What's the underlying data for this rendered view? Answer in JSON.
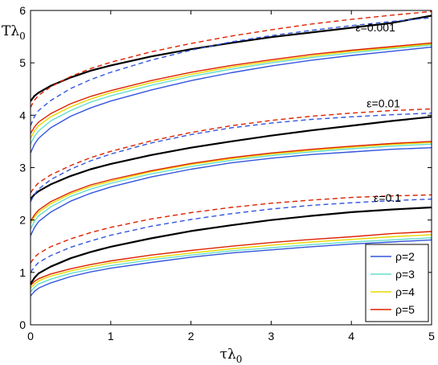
{
  "chart_data": {
    "type": "line",
    "xlabel": "τλ",
    "xlabel_sub": "0",
    "ylabel": "Tλ",
    "ylabel_sub": "0",
    "xlim": [
      0,
      5
    ],
    "ylim": [
      0,
      6
    ],
    "xticks": [
      "0",
      "1",
      "2",
      "3",
      "4",
      "5"
    ],
    "yticks": [
      "0",
      "1",
      "2",
      "3",
      "4",
      "5",
      "6"
    ],
    "grid": false,
    "legend_position": "bottom-right",
    "legend": [
      {
        "label": "ρ=2",
        "color": "#3355dd"
      },
      {
        "label": "ρ=3",
        "color": "#66ddcc"
      },
      {
        "label": "ρ=4",
        "color": "#e8d800"
      },
      {
        "label": "ρ=5",
        "color": "#dd2200"
      }
    ],
    "annotations": [
      {
        "text": "ε=0.001",
        "x": 4.3,
        "y": 5.6
      },
      {
        "text": "ε=0.01",
        "x": 4.4,
        "y": 4.15
      },
      {
        "text": "ε=0.1",
        "x": 4.45,
        "y": 2.35
      }
    ],
    "x": [
      0,
      0.05,
      0.1,
      0.25,
      0.5,
      0.75,
      1,
      1.5,
      2,
      2.5,
      3,
      3.5,
      4,
      4.5,
      5
    ],
    "series": [
      {
        "group": "ε=0.001",
        "style": "solid",
        "color": "#3355dd",
        "values": [
          3.28,
          3.45,
          3.56,
          3.76,
          3.98,
          4.14,
          4.27,
          4.48,
          4.66,
          4.81,
          4.94,
          5.05,
          5.14,
          5.22,
          5.3
        ]
      },
      {
        "group": "ε=0.001",
        "style": "solid",
        "color": "#66ddcc",
        "values": [
          3.45,
          3.6,
          3.7,
          3.89,
          4.09,
          4.25,
          4.37,
          4.57,
          4.74,
          4.88,
          5.0,
          5.1,
          5.19,
          5.27,
          5.34
        ]
      },
      {
        "group": "ε=0.001",
        "style": "solid",
        "color": "#e8d800",
        "values": [
          3.56,
          3.7,
          3.8,
          3.97,
          4.16,
          4.31,
          4.43,
          4.62,
          4.78,
          4.92,
          5.03,
          5.13,
          5.22,
          5.29,
          5.36
        ]
      },
      {
        "group": "ε=0.001",
        "style": "solid",
        "color": "#dd2200",
        "values": [
          3.65,
          3.78,
          3.87,
          4.03,
          4.22,
          4.36,
          4.47,
          4.66,
          4.82,
          4.95,
          5.06,
          5.16,
          5.24,
          5.31,
          5.38
        ]
      },
      {
        "group": "ε=0.001",
        "style": "solid",
        "color": "#000000",
        "values": [
          4.27,
          4.37,
          4.43,
          4.56,
          4.72,
          4.85,
          4.95,
          5.12,
          5.26,
          5.38,
          5.49,
          5.58,
          5.67,
          5.76,
          5.9
        ]
      },
      {
        "group": "ε=0.001",
        "style": "dashed",
        "color": "#3355dd",
        "values": [
          3.8,
          3.98,
          4.09,
          4.28,
          4.51,
          4.68,
          4.82,
          5.05,
          5.24,
          5.4,
          5.52,
          5.62,
          5.71,
          5.79,
          5.86
        ]
      },
      {
        "group": "ε=0.001",
        "style": "dashed",
        "color": "#dd2200",
        "values": [
          4.15,
          4.29,
          4.38,
          4.54,
          4.74,
          4.89,
          5.01,
          5.21,
          5.37,
          5.51,
          5.63,
          5.74,
          5.83,
          5.91,
          5.98
        ]
      },
      {
        "group": "ε=0.01",
        "style": "solid",
        "color": "#3355dd",
        "values": [
          1.7,
          1.86,
          1.97,
          2.15,
          2.36,
          2.51,
          2.63,
          2.82,
          2.97,
          3.09,
          3.18,
          3.25,
          3.3,
          3.35,
          3.38
        ]
      },
      {
        "group": "ε=0.01",
        "style": "solid",
        "color": "#66ddcc",
        "values": [
          1.83,
          1.98,
          2.08,
          2.25,
          2.45,
          2.59,
          2.7,
          2.88,
          3.02,
          3.14,
          3.23,
          3.3,
          3.36,
          3.41,
          3.45
        ]
      },
      {
        "group": "ε=0.01",
        "style": "solid",
        "color": "#e8d800",
        "values": [
          1.93,
          2.06,
          2.15,
          2.31,
          2.5,
          2.64,
          2.74,
          2.92,
          3.06,
          3.17,
          3.26,
          3.33,
          3.39,
          3.44,
          3.48
        ]
      },
      {
        "group": "ε=0.01",
        "style": "solid",
        "color": "#dd2200",
        "values": [
          1.98,
          2.1,
          2.19,
          2.35,
          2.53,
          2.67,
          2.77,
          2.94,
          3.08,
          3.19,
          3.28,
          3.35,
          3.41,
          3.46,
          3.5
        ]
      },
      {
        "group": "ε=0.01",
        "style": "solid",
        "color": "#000000",
        "values": [
          2.4,
          2.49,
          2.55,
          2.68,
          2.84,
          2.97,
          3.07,
          3.24,
          3.38,
          3.5,
          3.61,
          3.71,
          3.8,
          3.89,
          3.97
        ]
      },
      {
        "group": "ε=0.01",
        "style": "dashed",
        "color": "#3355dd",
        "values": [
          2.35,
          2.49,
          2.59,
          2.77,
          2.97,
          3.13,
          3.26,
          3.47,
          3.63,
          3.76,
          3.85,
          3.92,
          3.97,
          4.01,
          4.04
        ]
      },
      {
        "group": "ε=0.01",
        "style": "dashed",
        "color": "#dd2200",
        "values": [
          2.52,
          2.63,
          2.71,
          2.86,
          3.04,
          3.19,
          3.31,
          3.51,
          3.67,
          3.8,
          3.9,
          3.98,
          4.04,
          4.09,
          4.12
        ]
      },
      {
        "group": "ε=0.1",
        "style": "solid",
        "color": "#3355dd",
        "values": [
          0.55,
          0.64,
          0.7,
          0.8,
          0.92,
          1.01,
          1.08,
          1.19,
          1.29,
          1.37,
          1.43,
          1.49,
          1.54,
          1.58,
          1.62
        ]
      },
      {
        "group": "ε=0.1",
        "style": "solid",
        "color": "#66ddcc",
        "values": [
          0.63,
          0.72,
          0.78,
          0.87,
          0.98,
          1.06,
          1.13,
          1.24,
          1.33,
          1.41,
          1.47,
          1.53,
          1.58,
          1.62,
          1.66
        ]
      },
      {
        "group": "ε=0.1",
        "style": "solid",
        "color": "#e8d800",
        "values": [
          0.7,
          0.78,
          0.84,
          0.93,
          1.03,
          1.11,
          1.18,
          1.28,
          1.37,
          1.45,
          1.52,
          1.58,
          1.63,
          1.68,
          1.72
        ]
      },
      {
        "group": "ε=0.1",
        "style": "solid",
        "color": "#dd2200",
        "values": [
          0.75,
          0.83,
          0.88,
          0.97,
          1.07,
          1.15,
          1.22,
          1.33,
          1.42,
          1.5,
          1.57,
          1.63,
          1.68,
          1.74,
          1.78
        ]
      },
      {
        "group": "ε=0.1",
        "style": "solid",
        "color": "#000000",
        "values": [
          0.78,
          0.9,
          0.98,
          1.11,
          1.27,
          1.39,
          1.49,
          1.65,
          1.79,
          1.9,
          2.0,
          2.08,
          2.15,
          2.2,
          2.24
        ]
      },
      {
        "group": "ε=0.1",
        "style": "dashed",
        "color": "#3355dd",
        "values": [
          1.0,
          1.11,
          1.19,
          1.32,
          1.48,
          1.6,
          1.71,
          1.88,
          2.01,
          2.12,
          2.21,
          2.28,
          2.33,
          2.37,
          2.4
        ]
      },
      {
        "group": "ε=0.1",
        "style": "dashed",
        "color": "#dd2200",
        "values": [
          1.18,
          1.29,
          1.36,
          1.49,
          1.64,
          1.76,
          1.86,
          2.02,
          2.14,
          2.24,
          2.32,
          2.38,
          2.43,
          2.46,
          2.48
        ]
      }
    ]
  }
}
